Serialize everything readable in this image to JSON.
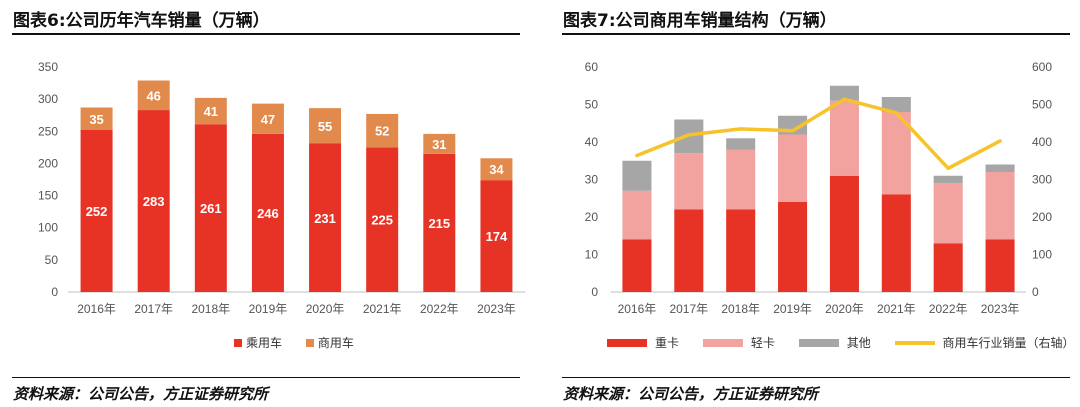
{
  "colors": {
    "passenger": "#e73325",
    "commercial_l": "#e2894c",
    "heavy": "#e73325",
    "light": "#f2a3a0",
    "other": "#a6a6a6",
    "industry": "#f6c32a",
    "axis_text": "#555555"
  },
  "left": {
    "title": "图表6:公司历年汽车销量（万辆）",
    "source": "资料来源：公司公告，方正证券研究所"
  },
  "right": {
    "title": "图表7:公司商用车销量结构（万辆）",
    "source": "资料来源：公司公告，方正证券研究所"
  },
  "chart_data": [
    {
      "type": "bar",
      "stacked": true,
      "categories": [
        "2016年",
        "2017年",
        "2018年",
        "2019年",
        "2020年",
        "2021年",
        "2022年",
        "2023年"
      ],
      "series": [
        {
          "name": "乘用车",
          "values": [
            252,
            283,
            261,
            246,
            231,
            225,
            215,
            174
          ]
        },
        {
          "name": "商用车",
          "values": [
            35,
            46,
            41,
            47,
            55,
            52,
            31,
            34
          ]
        }
      ],
      "yticks": [
        "0",
        "50",
        "100",
        "150",
        "200",
        "250",
        "300",
        "350"
      ],
      "ylim": [
        0,
        350
      ],
      "data_labels": true,
      "legend": "bottom"
    },
    {
      "type": "bar",
      "stacked": true,
      "categories": [
        "2016年",
        "2017年",
        "2018年",
        "2019年",
        "2020年",
        "2021年",
        "2022年",
        "2023年"
      ],
      "series": [
        {
          "name": "重卡",
          "values": [
            14,
            22,
            22,
            24,
            31,
            26,
            13,
            14
          ]
        },
        {
          "name": "轻卡",
          "values": [
            13,
            15,
            16,
            18,
            20,
            22,
            16,
            18
          ]
        },
        {
          "name": "其他",
          "values": [
            8,
            9,
            3,
            5,
            4,
            4,
            2,
            2
          ]
        },
        {
          "name": "商用车行业销量（右轴）",
          "type": "line",
          "axis": "right",
          "values": [
            364,
            419,
            435,
            430,
            514,
            478,
            330,
            403
          ]
        }
      ],
      "yticks_left": [
        "0",
        "10",
        "20",
        "30",
        "40",
        "50",
        "60"
      ],
      "yticks_right": [
        "0",
        "100",
        "200",
        "300",
        "400",
        "500",
        "600"
      ],
      "ylim_left": [
        0,
        60
      ],
      "ylim_right": [
        0,
        600
      ],
      "legend": "bottom"
    }
  ]
}
